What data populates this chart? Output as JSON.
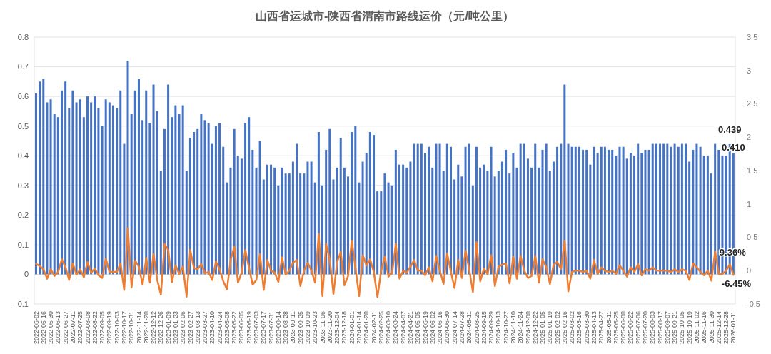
{
  "chart_data": {
    "type": "bar",
    "title": "山西省运城市-陕西省渭南市路线运价（元/吨公里）",
    "categories": [
      "2022-05-02",
      null,
      "2022-05-16",
      null,
      "2022-05-30",
      null,
      "2022-06-13",
      null,
      "2022-06-27",
      null,
      "2022-07-11",
      null,
      "2022-07-25",
      null,
      "2022-08-08",
      null,
      "2022-08-22",
      null,
      "2022-09-05",
      null,
      "2022-09-19",
      null,
      "2022-10-03",
      null,
      "2022-10-17",
      null,
      "2022-10-31",
      null,
      "2022-11-14",
      null,
      "2022-11-28",
      null,
      "2022-12-12",
      null,
      "2022-12-26",
      null,
      "2023-01-09",
      null,
      "2023-01-23",
      null,
      "2023-02-06",
      null,
      "2023-02-27",
      null,
      "2023-03-13",
      null,
      "2023-03-27",
      null,
      "2023-04-10",
      null,
      "2023-04-24",
      null,
      "2023-05-08",
      null,
      "2023-05-22",
      null,
      "2023-06-05",
      null,
      "2023-06-19",
      null,
      "2023-07-03",
      null,
      "2023-07-17",
      null,
      "2023-07-31",
      null,
      "2023-08-14",
      null,
      "2023-08-28",
      null,
      "2023-09-11",
      null,
      "2023-09-25",
      null,
      "2023-10-09",
      null,
      "2023-10-23",
      null,
      "2023-11-06",
      null,
      "2023-11-20",
      null,
      "2023-12-04",
      null,
      "2023-12-18",
      null,
      "2024-01-01",
      null,
      "2024-01-14",
      null,
      "2024-01-28",
      null,
      "2024-02-11",
      null,
      "2024-02-25",
      null,
      "2024-03-10",
      null,
      "2024-03-24",
      null,
      "2024-04-07",
      null,
      "2024-04-21",
      null,
      "2024-05-05",
      null,
      "2024-05-19",
      null,
      "2024-06-02",
      null,
      "2024-06-16",
      null,
      "2024-06-30",
      null,
      "2024-07-14",
      null,
      "2024-07-28",
      null,
      "2024-08-11",
      null,
      "2024-08-25",
      null,
      "2024-09-15",
      null,
      "2024-09-29",
      null,
      "2024-10-13",
      null,
      "2024-10-27",
      null,
      "2024-11-10",
      null,
      "2024-11-24",
      null,
      "2024-12-08",
      null,
      "2024-12-22",
      null,
      "2025-01-05",
      null,
      "2025-01-19",
      null,
      "2025-02-02",
      null,
      "2025-02-16",
      null,
      "2025-03-02",
      null,
      "2025-03-16",
      null,
      "2025-03-30",
      null,
      "2025-04-13",
      null,
      "2025-04-27",
      null,
      "2025-05-11",
      null,
      "2025-05-25",
      null,
      "2025-06-08",
      null,
      "2025-06-22",
      null,
      "2025-07-06",
      null,
      "2025-07-20",
      null,
      "2025-08-03",
      null,
      "2025-08-17",
      null,
      "2025-09-07",
      null,
      "2025-09-21",
      null,
      "2025-10-05",
      null,
      "2025-10-19",
      null,
      "2025-11-02",
      null,
      "2025-11-16",
      null,
      "2025-11-30",
      null,
      "2025-12-14",
      null,
      "2025-12-28",
      null,
      "2026-01-11"
    ],
    "series": [
      {
        "color": "#4472c4",
        "values": [
          0.61,
          0.65,
          0.66,
          0.58,
          0.59,
          0.54,
          0.53,
          0.62,
          0.65,
          0.56,
          0.62,
          0.58,
          0.59,
          0.53,
          0.6,
          0.58,
          0.6,
          0.56,
          0.5,
          0.59,
          0.58,
          0.57,
          0.56,
          0.62,
          0.44,
          0.72,
          0.54,
          0.62,
          0.66,
          0.52,
          0.62,
          0.51,
          0.64,
          0.55,
          0.35,
          0.49,
          0.64,
          0.53,
          0.57,
          0.54,
          0.57,
          0.35,
          0.46,
          0.48,
          0.49,
          0.54,
          0.52,
          0.51,
          0.44,
          0.5,
          0.51,
          0.43,
          0.31,
          0.36,
          0.49,
          0.4,
          0.39,
          0.51,
          0.53,
          0.42,
          0.36,
          0.45,
          0.32,
          0.37,
          0.37,
          0.36,
          0.3,
          0.36,
          0.34,
          0.34,
          0.38,
          0.44,
          0.34,
          0.34,
          0.38,
          0.38,
          0.31,
          0.48,
          0.3,
          0.42,
          0.49,
          0.32,
          0.36,
          0.46,
          0.36,
          0.33,
          0.48,
          0.5,
          0.31,
          0.38,
          0.41,
          0.48,
          0.47,
          0.28,
          0.28,
          0.34,
          0.31,
          0.3,
          0.42,
          0.37,
          0.37,
          0.36,
          0.38,
          0.44,
          0.44,
          0.44,
          0.41,
          0.43,
          0.36,
          0.44,
          0.44,
          0.35,
          0.44,
          0.43,
          0.32,
          0.37,
          0.33,
          0.43,
          0.44,
          0.3,
          0.43,
          0.36,
          0.37,
          0.35,
          0.43,
          0.33,
          0.35,
          0.38,
          0.42,
          0.34,
          0.41,
          0.36,
          0.44,
          0.44,
          0.39,
          0.36,
          0.44,
          0.36,
          0.42,
          0.44,
          0.35,
          0.38,
          0.43,
          0.44,
          0.64,
          0.44,
          0.43,
          0.43,
          0.43,
          0.42,
          0.42,
          0.37,
          0.43,
          0.41,
          0.43,
          0.43,
          0.42,
          0.42,
          0.4,
          0.43,
          0.43,
          0.39,
          0.41,
          0.4,
          0.44,
          0.41,
          0.42,
          0.42,
          0.44,
          0.44,
          0.44,
          0.44,
          0.44,
          0.43,
          0.44,
          0.43,
          0.44,
          0.44,
          0.38,
          0.42,
          0.44,
          0.43,
          0.4,
          0.4,
          0.34,
          0.44,
          0.42,
          0.4,
          0.4,
          0.439,
          0.41
        ],
        "value_labels": [
          null,
          null,
          null,
          null,
          null,
          null,
          null,
          null,
          null,
          null,
          null,
          null,
          null,
          null,
          null,
          null,
          null,
          null,
          null,
          null,
          null,
          null,
          null,
          null,
          null,
          null,
          null,
          null,
          null,
          null,
          null,
          null,
          null,
          null,
          null,
          null,
          null,
          null,
          null,
          null,
          null,
          null,
          null,
          null,
          null,
          null,
          null,
          null,
          null,
          null,
          null,
          null,
          null,
          null,
          null,
          null,
          null,
          null,
          null,
          null,
          null,
          null,
          null,
          null,
          null,
          null,
          null,
          null,
          null,
          null,
          null,
          null,
          null,
          null,
          null,
          null,
          null,
          null,
          null,
          null,
          null,
          null,
          null,
          null,
          null,
          null,
          null,
          null,
          null,
          null,
          null,
          null,
          null,
          null,
          null,
          null,
          null,
          null,
          null,
          null,
          null,
          null,
          null,
          null,
          null,
          null,
          null,
          null,
          null,
          null,
          null,
          null,
          null,
          null,
          null,
          null,
          null,
          null,
          null,
          null,
          null,
          null,
          null,
          null,
          null,
          null,
          null,
          null,
          null,
          null,
          null,
          null,
          null,
          null,
          null,
          null,
          null,
          null,
          null,
          null,
          null,
          null,
          null,
          null,
          null,
          null,
          null,
          null,
          null,
          null,
          null,
          null,
          null,
          null,
          null,
          null,
          null,
          null,
          null,
          null,
          null,
          null,
          null,
          null,
          null,
          null,
          null,
          null,
          null,
          null,
          null,
          null,
          null,
          null,
          null,
          null,
          null,
          null,
          null,
          null,
          null,
          null,
          null,
          null,
          null,
          null,
          null,
          null,
          null,
          "0.439",
          "0.410"
        ]
      },
      {
        "type": "line",
        "axis": "y2",
        "color": "#ed7d31",
        "values": [
          0.1,
          0.07,
          0.02,
          -0.12,
          0.02,
          -0.08,
          -0.02,
          0.17,
          0.05,
          -0.14,
          0.11,
          -0.06,
          0.02,
          -0.1,
          0.13,
          -0.03,
          0.03,
          -0.07,
          -0.11,
          0.18,
          -0.02,
          -0.02,
          -0.02,
          0.11,
          -0.29,
          0.64,
          -0.25,
          0.15,
          0.06,
          -0.21,
          0.19,
          -0.18,
          0.25,
          -0.14,
          -0.36,
          0.4,
          0.31,
          -0.17,
          0.08,
          -0.05,
          0.06,
          -0.39,
          0.31,
          0.04,
          0.02,
          0.1,
          -0.04,
          -0.02,
          -0.14,
          0.14,
          0.02,
          -0.16,
          -0.28,
          0.16,
          0.36,
          -0.18,
          -0.03,
          0.31,
          0.04,
          -0.21,
          -0.14,
          0.25,
          -0.29,
          0.16,
          0,
          -0.03,
          -0.17,
          0.2,
          -0.06,
          0,
          0.12,
          0.16,
          -0.23,
          0,
          0.12,
          0,
          -0.18,
          0.55,
          -0.38,
          0.4,
          0.17,
          -0.35,
          0.13,
          0.28,
          -0.22,
          -0.08,
          0.45,
          0.04,
          -0.38,
          0.23,
          0.08,
          0.17,
          -0.02,
          -0.4,
          0,
          0.21,
          -0.09,
          -0.03,
          0.4,
          -0.12,
          0,
          -0.03,
          0.06,
          0.16,
          0,
          0,
          -0.07,
          0.05,
          -0.16,
          0.22,
          0,
          -0.2,
          0.26,
          -0.02,
          -0.26,
          0.16,
          -0.11,
          0.3,
          0.02,
          -0.32,
          0.43,
          -0.16,
          0.03,
          -0.05,
          0.23,
          -0.23,
          0.06,
          0.09,
          0.11,
          -0.19,
          0.21,
          -0.12,
          0.22,
          0,
          -0.11,
          -0.08,
          0.22,
          -0.18,
          0.17,
          0.05,
          -0.2,
          0.09,
          0.13,
          0.02,
          0.45,
          -0.31,
          -0.02,
          0,
          0,
          -0.02,
          0,
          -0.12,
          0.16,
          -0.05,
          0.05,
          0,
          -0.02,
          0,
          -0.05,
          0.08,
          0,
          -0.09,
          0.05,
          -0.02,
          0.1,
          -0.07,
          0.02,
          0,
          0.05,
          0,
          0,
          0,
          0,
          -0.02,
          0.02,
          -0.02,
          0.02,
          0,
          -0.14,
          0.11,
          0.05,
          -0.02,
          -0.07,
          0,
          -0.15,
          0.29,
          -0.05,
          -0.05,
          0,
          0.0936,
          -0.0645
        ],
        "value_labels": [
          null,
          null,
          null,
          null,
          null,
          null,
          null,
          null,
          null,
          null,
          null,
          null,
          null,
          null,
          null,
          null,
          null,
          null,
          null,
          null,
          null,
          null,
          null,
          null,
          null,
          null,
          null,
          null,
          null,
          null,
          null,
          null,
          null,
          null,
          null,
          null,
          null,
          null,
          null,
          null,
          null,
          null,
          null,
          null,
          null,
          null,
          null,
          null,
          null,
          null,
          null,
          null,
          null,
          null,
          null,
          null,
          null,
          null,
          null,
          null,
          null,
          null,
          null,
          null,
          null,
          null,
          null,
          null,
          null,
          null,
          null,
          null,
          null,
          null,
          null,
          null,
          null,
          null,
          null,
          null,
          null,
          null,
          null,
          null,
          null,
          null,
          null,
          null,
          null,
          null,
          null,
          null,
          null,
          null,
          null,
          null,
          null,
          null,
          null,
          null,
          null,
          null,
          null,
          null,
          null,
          null,
          null,
          null,
          null,
          null,
          null,
          null,
          null,
          null,
          null,
          null,
          null,
          null,
          null,
          null,
          null,
          null,
          null,
          null,
          null,
          null,
          null,
          null,
          null,
          null,
          null,
          null,
          null,
          null,
          null,
          null,
          null,
          null,
          null,
          null,
          null,
          null,
          null,
          null,
          null,
          null,
          null,
          null,
          null,
          null,
          null,
          null,
          null,
          null,
          null,
          null,
          null,
          null,
          null,
          null,
          null,
          null,
          null,
          null,
          null,
          null,
          null,
          null,
          null,
          null,
          null,
          null,
          null,
          null,
          null,
          null,
          null,
          null,
          null,
          null,
          null,
          null,
          null,
          null,
          null,
          null,
          null,
          null,
          null,
          "9.36%",
          "-6.45%"
        ]
      }
    ],
    "ylim": [
      -0.1,
      0.8
    ],
    "yticks": [
      0.8,
      0.7,
      0.6,
      0.5,
      0.4,
      0.3,
      0.2,
      0.1,
      0,
      -0.1
    ],
    "y2lim": [
      -0.5,
      3.5
    ],
    "y2ticks": [
      3.5,
      3,
      2.5,
      2,
      1.5,
      1,
      0.5,
      0,
      -0.5
    ],
    "grid": "y"
  }
}
